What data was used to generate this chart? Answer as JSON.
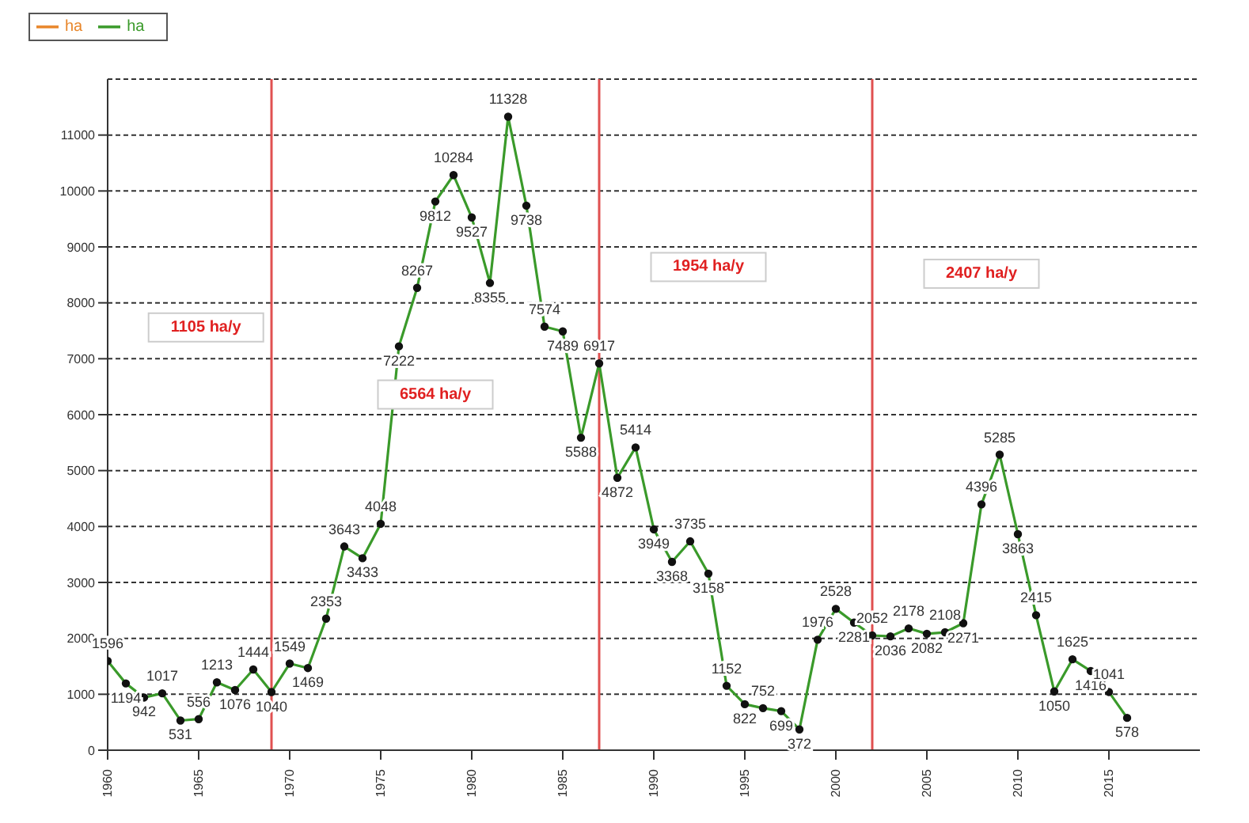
{
  "chart_data": {
    "type": "line",
    "x": [
      1960,
      1961,
      1962,
      1963,
      1964,
      1965,
      1966,
      1967,
      1968,
      1969,
      1970,
      1971,
      1972,
      1973,
      1974,
      1975,
      1976,
      1977,
      1978,
      1979,
      1980,
      1981,
      1982,
      1983,
      1984,
      1985,
      1986,
      1987,
      1988,
      1989,
      1990,
      1991,
      1992,
      1993,
      1994,
      1995,
      1996,
      1997,
      1998,
      1999,
      2000,
      2001,
      2002,
      2003,
      2004,
      2005,
      2006,
      2007,
      2008,
      2009,
      2010,
      2011,
      2012,
      2013,
      2014,
      2015,
      2016
    ],
    "series": [
      {
        "name": "ha",
        "color": "#e8862a",
        "values": [
          null,
          null,
          null,
          null,
          null,
          null,
          null,
          null,
          null,
          null,
          null,
          null,
          null,
          null,
          null,
          null,
          null,
          null,
          null,
          null,
          null,
          null,
          null,
          null,
          null,
          null,
          null,
          null,
          null,
          null,
          null,
          null,
          null,
          null,
          null,
          null,
          null,
          null,
          null,
          null,
          null,
          null,
          null,
          null,
          null,
          null,
          null,
          null,
          null,
          null,
          null,
          null,
          null,
          null,
          null,
          null,
          null
        ]
      },
      {
        "name": "ha",
        "color": "#3a9a2a",
        "values": [
          1596,
          1194,
          942,
          1017,
          531,
          556,
          1213,
          1076,
          1444,
          1040,
          1549,
          1469,
          2353,
          3643,
          3433,
          4048,
          7222,
          8267,
          9812,
          10284,
          9527,
          8355,
          11328,
          9738,
          7574,
          7489,
          5588,
          6917,
          4872,
          5414,
          3949,
          3368,
          3735,
          3158,
          1152,
          822,
          752,
          699,
          372,
          1976,
          2528,
          2281,
          2052,
          2036,
          2178,
          2082,
          2108,
          2271,
          4396,
          5285,
          3863,
          2415,
          1050,
          1625,
          1416,
          1041,
          578
        ]
      }
    ],
    "data_labels": true,
    "xlim": [
      1960,
      2020
    ],
    "xticks": [
      1960,
      1965,
      1970,
      1975,
      1980,
      1985,
      1990,
      1995,
      2000,
      2005,
      2010,
      2015
    ],
    "ylim": [
      0,
      12000
    ],
    "yticks": [
      0,
      1000,
      2000,
      3000,
      4000,
      5000,
      6000,
      7000,
      8000,
      9000,
      10000,
      11000
    ],
    "grid": "y",
    "legend": "top left",
    "marker": "circle",
    "line_style": "solid",
    "ref_lines": [
      {
        "axis": "x",
        "value": 1969,
        "color": "#e05050"
      },
      {
        "axis": "x",
        "value": 1987,
        "color": "#e05050"
      },
      {
        "axis": "x",
        "value": 2002,
        "color": "#e05050"
      }
    ],
    "annotations": [
      "1105 ha/y",
      "6564 ha/y",
      "1954 ha/y",
      "2407 ha/y"
    ]
  }
}
